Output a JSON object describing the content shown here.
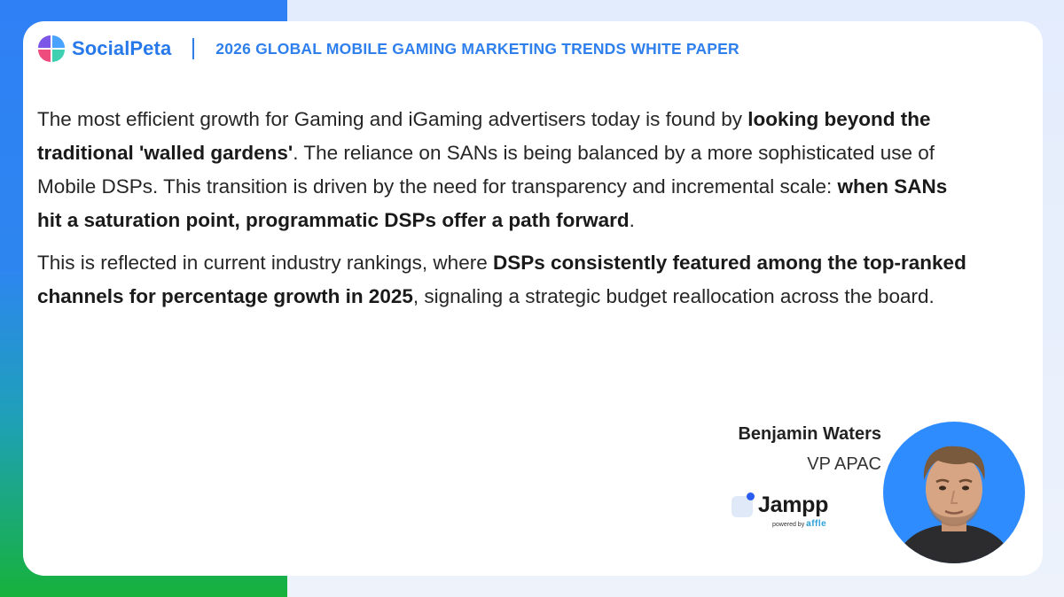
{
  "header": {
    "brand": "SocialPeta",
    "title": "2026 GLOBAL MOBILE GAMING MARKETING TRENDS WHITE PAPER",
    "logo_icon": "socialpeta-logo-icon"
  },
  "quote": {
    "p1": {
      "s1": "The most efficient growth for Gaming and iGaming advertisers today is found by ",
      "b1": "looking beyond the traditional 'walled gardens'",
      "s2": ". The reliance on SANs is being balanced by a more sophisticated use of Mobile DSPs. This transition is driven by the need for transparency and incremental scale: ",
      "b2": "when SANs hit a saturation point, programmatic DSPs offer a path forward",
      "s3": "."
    },
    "p2": {
      "s1": "This is reflected in current industry rankings, where ",
      "b1": "DSPs consistently featured among the top-ranked channels for percentage growth in 2025",
      "s2": ", signaling a strategic budget reallocation across the board."
    }
  },
  "author": {
    "name": "Benjamin Waters",
    "role": "VP APAC",
    "avatar_icon": "author-avatar"
  },
  "company": {
    "name": "Jampp",
    "powered_by": "powered by",
    "parent": "affle"
  },
  "colors": {
    "brand_blue": "#2778ea",
    "accent_gradient_top": "#2f80f4",
    "accent_gradient_bottom": "#16b23c",
    "avatar_bg": "#2f8cff"
  }
}
